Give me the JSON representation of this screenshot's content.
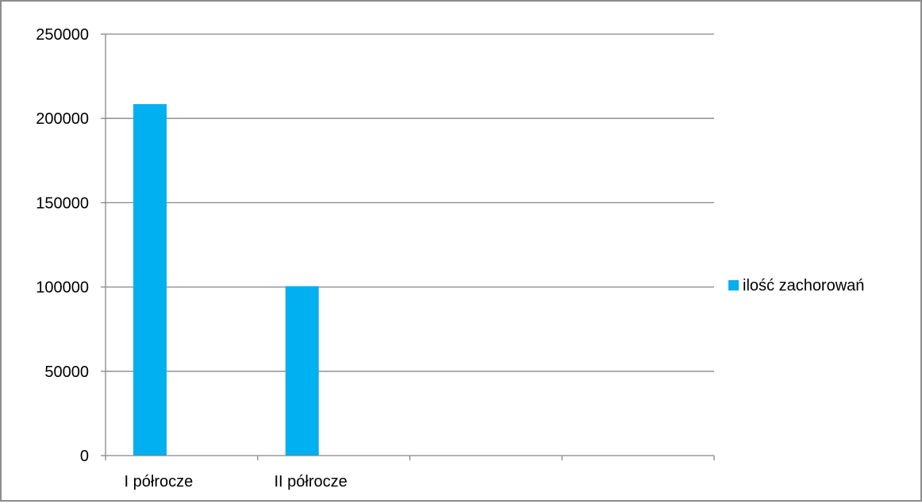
{
  "chart_data": {
    "type": "bar",
    "categories": [
      "I półrocze",
      "II półrocze",
      "",
      ""
    ],
    "series": [
      {
        "name": "ilość zachorowań",
        "values": [
          208500,
          100500,
          null,
          null
        ],
        "color": "#00B0F0"
      }
    ],
    "ylim": [
      0,
      250000
    ],
    "yticks": [
      0,
      50000,
      100000,
      150000,
      200000,
      250000
    ],
    "grid": true,
    "legend": "right",
    "gridline_color": "#868686",
    "axis_color": "#868686"
  }
}
